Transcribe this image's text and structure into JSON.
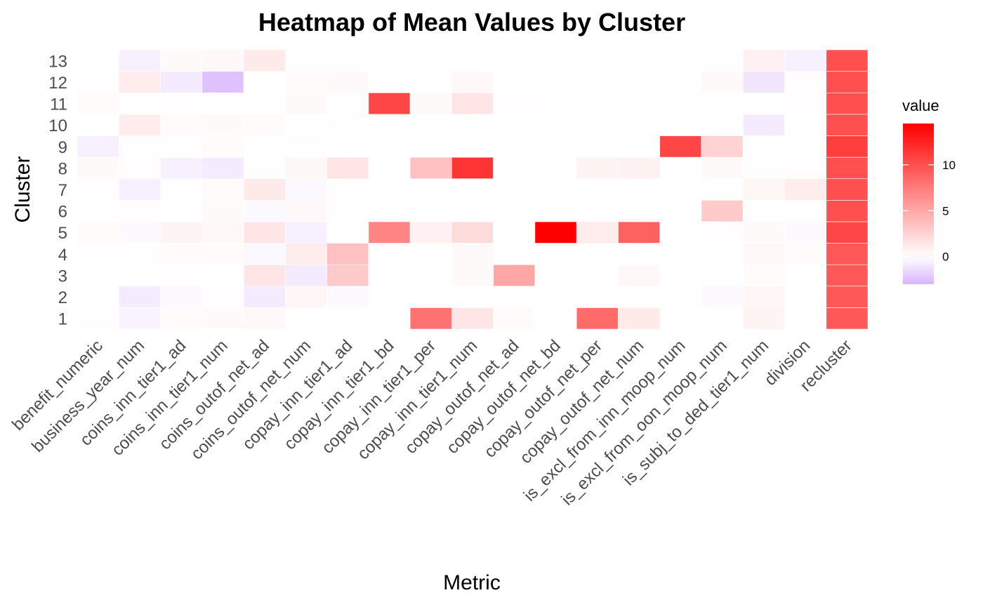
{
  "chart_data": {
    "type": "heatmap",
    "title": "Heatmap of Mean Values by Cluster",
    "xlabel": "Metric",
    "ylabel": "Cluster",
    "x": [
      "benefit_numeric",
      "business_year_num",
      "coins_inn_tier1_ad",
      "coins_inn_tier1_num",
      "coins_outof_net_ad",
      "coins_outof_net_num",
      "copay_inn_tier1_ad",
      "copay_inn_tier1_bd",
      "copay_inn_tier1_per",
      "copay_inn_tier1_num",
      "copay_outof_net_ad",
      "copay_outof_net_bd",
      "copay_outof_net_per",
      "copay_outof_net_num",
      "is_excl_from_inn_moop_num",
      "is_excl_from_oon_moop_num",
      "is_subj_to_ded_tier1_num",
      "division",
      "recluster"
    ],
    "y": [
      "1",
      "2",
      "3",
      "4",
      "5",
      "6",
      "7",
      "8",
      "9",
      "10",
      "11",
      "12",
      "13"
    ],
    "values": [
      [
        0.1,
        -0.5,
        0.2,
        0.3,
        0.4,
        0,
        0,
        0,
        8.0,
        1.5,
        0.2,
        0,
        8.5,
        1.2,
        0,
        0,
        0.6,
        0,
        9.5
      ],
      [
        0,
        -0.8,
        -0.2,
        0.1,
        -0.8,
        0.5,
        -0.2,
        0,
        0,
        0,
        0,
        0,
        0,
        0,
        0,
        -0.2,
        0.5,
        0,
        9.5
      ],
      [
        0,
        -0.1,
        0.1,
        0,
        1.5,
        -0.8,
        3.0,
        0,
        0,
        0.3,
        5.0,
        0,
        0,
        0.4,
        0,
        -0.1,
        0.2,
        0,
        9.5
      ],
      [
        0.1,
        -0.1,
        0.2,
        0.2,
        -0.3,
        1.0,
        3.5,
        0,
        0,
        0.3,
        0,
        0,
        0,
        0,
        0,
        0,
        0.4,
        0.2,
        9.5
      ],
      [
        0.2,
        -0.2,
        0.6,
        0.4,
        1.5,
        -0.6,
        0,
        7.0,
        0.8,
        2.0,
        0,
        14.5,
        1.0,
        9.0,
        0,
        0.1,
        0.3,
        -0.2,
        10.5
      ],
      [
        0,
        0.1,
        0,
        0.3,
        -0.2,
        0.4,
        -0.1,
        0,
        0,
        0,
        0,
        0,
        0,
        0,
        0,
        3.0,
        0,
        0,
        10.0
      ],
      [
        0.1,
        -0.6,
        -0.1,
        0.2,
        1.2,
        -0.3,
        -0.1,
        0,
        -0.1,
        0,
        0,
        0,
        0,
        0,
        0,
        -0.1,
        0.5,
        1.0,
        10.0
      ],
      [
        0.3,
        0.1,
        -0.6,
        -0.8,
        -0.1,
        0.4,
        1.5,
        0,
        3.5,
        11.5,
        0,
        0,
        0.6,
        0.8,
        0,
        0.3,
        -0.1,
        0.1,
        10.0
      ],
      [
        -0.6,
        -0.1,
        -0.1,
        0.2,
        0,
        -0.1,
        0,
        0,
        0,
        0,
        0,
        0,
        0,
        0,
        10.5,
        2.5,
        0,
        0,
        11.0
      ],
      [
        0,
        1.0,
        0.2,
        0.3,
        0.2,
        0,
        -0.1,
        0,
        0,
        0,
        0,
        0,
        0,
        0,
        0,
        -0.1,
        -0.8,
        0,
        10.0
      ],
      [
        0.2,
        -0.1,
        0.1,
        0,
        0,
        0.3,
        -0.1,
        10.5,
        0.3,
        1.5,
        0.1,
        0,
        0,
        0,
        0,
        0,
        0,
        0.1,
        10.0
      ],
      [
        0.1,
        1.0,
        -0.8,
        -2.5,
        0,
        0.2,
        0.3,
        0,
        0,
        0.4,
        0,
        0,
        0,
        0,
        0,
        0.3,
        -1.0,
        0.1,
        10.0
      ],
      [
        0,
        -0.6,
        0.3,
        0.4,
        1.2,
        -0.1,
        -0.1,
        0,
        0,
        0,
        0,
        0,
        0,
        0,
        0,
        -0.1,
        0.8,
        -0.6,
        10.0
      ]
    ],
    "color_scale": {
      "low": "#d8b4fe",
      "mid": "#ffffff",
      "high": "#ff0000",
      "min": -3,
      "mid_value": 0,
      "max": 14.5
    },
    "legend": {
      "title": "value",
      "ticks": [
        0,
        5,
        10
      ],
      "position": "right"
    },
    "grid": true
  }
}
